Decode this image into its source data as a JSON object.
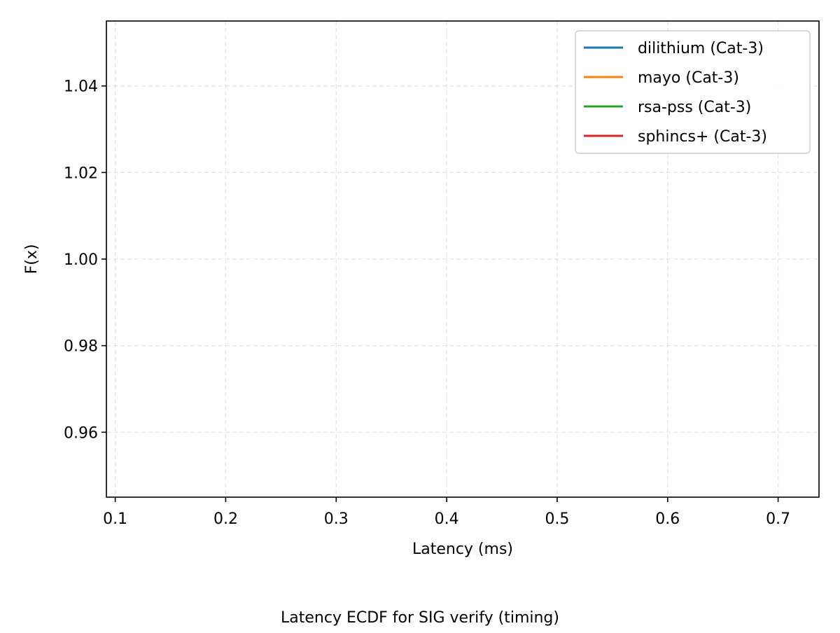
{
  "chart_data": {
    "type": "line",
    "title": "",
    "caption": "Latency ECDF for SIG verify (timing)",
    "xlabel": "Latency (ms)",
    "ylabel": "F(x)",
    "xlim": [
      0.092,
      0.737
    ],
    "ylim": [
      0.945,
      1.055
    ],
    "xticks": [
      {
        "value": 0.1,
        "label": "0.1"
      },
      {
        "value": 0.2,
        "label": "0.2"
      },
      {
        "value": 0.3,
        "label": "0.3"
      },
      {
        "value": 0.4,
        "label": "0.4"
      },
      {
        "value": 0.5,
        "label": "0.5"
      },
      {
        "value": 0.6,
        "label": "0.6"
      },
      {
        "value": 0.7,
        "label": "0.7"
      }
    ],
    "yticks": [
      {
        "value": 0.96,
        "label": "0.96"
      },
      {
        "value": 0.98,
        "label": "0.98"
      },
      {
        "value": 1.0,
        "label": "1.00"
      },
      {
        "value": 1.02,
        "label": "1.02"
      },
      {
        "value": 1.04,
        "label": "1.04"
      }
    ],
    "grid": true,
    "legend_position": "top-right",
    "series": [
      {
        "name": "dilithium (Cat-3)",
        "color": "#1f77b4",
        "x": [],
        "y": []
      },
      {
        "name": "mayo (Cat-3)",
        "color": "#ff7f0e",
        "x": [],
        "y": []
      },
      {
        "name": "rsa-pss (Cat-3)",
        "color": "#2ca02c",
        "x": [],
        "y": []
      },
      {
        "name": "sphincs+ (Cat-3)",
        "color": "#d62728",
        "x": [],
        "y": []
      }
    ]
  }
}
